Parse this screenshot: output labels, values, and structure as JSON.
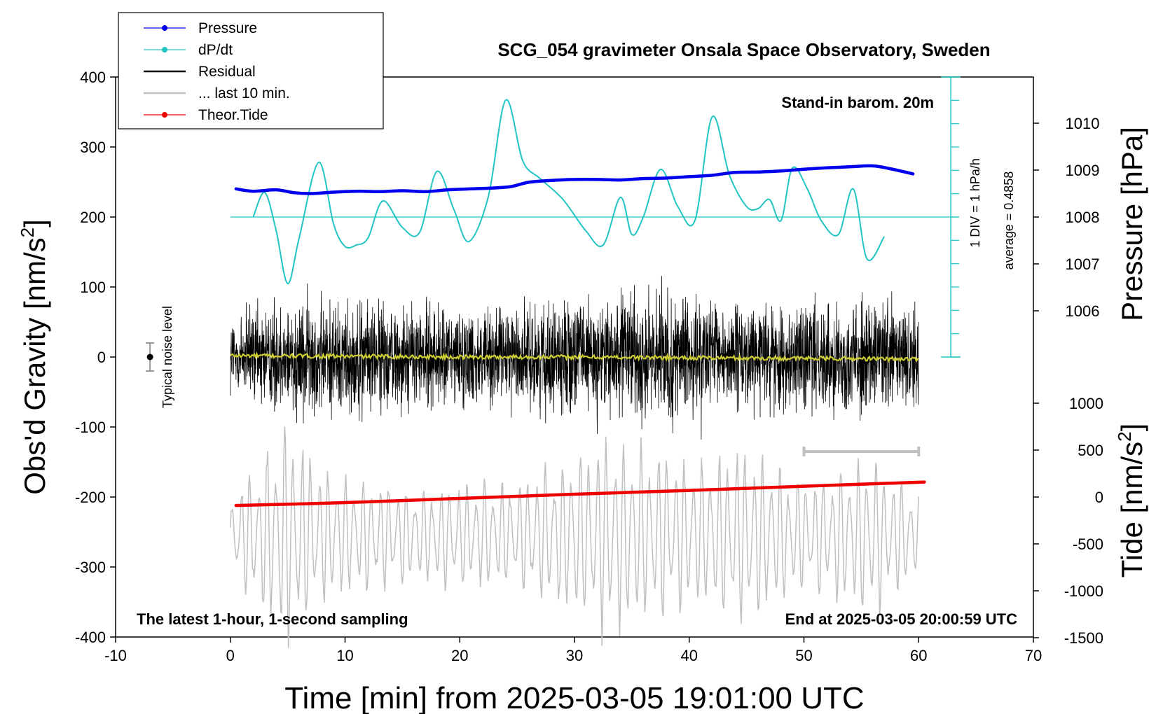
{
  "chart_data": {
    "type": "line",
    "title": "SCG_054 gravimeter Onsala Space Observatory, Sweden",
    "xlabel": "Time [min] from 2025-03-05 19:01:00 UTC",
    "ylabel": "Obs'd Gravity [nm/s",
    "ylabel_sup": "2",
    "ylabel_end": "]",
    "xlim": [
      -10,
      70
    ],
    "ylim": [
      -400,
      400
    ],
    "xticks": [
      -10,
      0,
      10,
      20,
      30,
      40,
      50,
      60,
      70
    ],
    "yticks": [
      400,
      300,
      200,
      100,
      0,
      -100,
      -200,
      -300,
      -400
    ],
    "pressure_axis": {
      "label": "Pressure [hPa]",
      "ticks": [
        1010,
        1009,
        1008,
        1007,
        1006
      ],
      "gravity_at_1008": 200,
      "gravity_per_hpa": 67
    },
    "tide_axis": {
      "label": "Tide [nm/s",
      "label_sup": "2",
      "label_end": "]",
      "ticks": [
        1000,
        500,
        0,
        -500,
        -1000,
        -1500
      ],
      "gravity_at_0": -200,
      "gravity_per_500": 67
    },
    "legend": [
      {
        "label": "Pressure",
        "color": "#0000ee",
        "style": "line-dot"
      },
      {
        "label": "dP/dt",
        "color": "#22c4c4",
        "style": "line-dot"
      },
      {
        "label": "Residual",
        "color": "#000000",
        "style": "line"
      },
      {
        "label": "... last 10 min.",
        "color": "#c0c0c0",
        "style": "line"
      },
      {
        "label": "Theor.Tide",
        "color": "#ee0000",
        "style": "line-dot"
      }
    ],
    "annotations": {
      "barometer": "Stand-in barom. 20m",
      "scale_div": "1 DIV = 1 hPa/h",
      "scale_avg": "average = 0.4858",
      "noise_label": "Typical noise level",
      "bottom_left": "The latest 1-hour, 1-second sampling",
      "bottom_right": "End at 2025-03-05 20:00:59 UTC"
    },
    "series": [
      {
        "name": "Pressure",
        "unit": "hPa",
        "color": "#0000ee",
        "x": [
          0.5,
          2,
          4,
          5.5,
          7,
          9,
          11,
          13,
          15,
          17,
          19,
          21,
          23,
          24.5,
          26,
          28,
          30,
          32,
          34,
          36,
          38,
          40,
          42,
          44,
          46,
          48,
          50,
          52,
          54,
          56,
          57.5,
          59.5
        ],
        "values": [
          1008.6,
          1008.55,
          1008.58,
          1008.52,
          1008.5,
          1008.53,
          1008.55,
          1008.54,
          1008.56,
          1008.54,
          1008.58,
          1008.6,
          1008.62,
          1008.65,
          1008.74,
          1008.78,
          1008.8,
          1008.8,
          1008.79,
          1008.82,
          1008.83,
          1008.86,
          1008.89,
          1008.95,
          1008.96,
          1008.98,
          1009.02,
          1009.05,
          1009.07,
          1009.09,
          1009.03,
          1008.92
        ]
      },
      {
        "name": "dP/dt",
        "unit": "gravity units (200 = 0 hPa/h)",
        "color": "#22c4c4",
        "x": [
          2,
          3,
          4,
          5,
          6,
          7.7,
          9,
          10,
          11,
          12,
          13.3,
          15,
          16.5,
          18,
          19.5,
          20.8,
          22.5,
          24,
          25.5,
          27,
          29,
          31,
          32.5,
          34,
          35,
          36,
          37.5,
          39,
          40.5,
          42,
          43.5,
          45,
          46,
          47,
          48,
          49,
          50.3,
          51.5,
          53,
          54.3,
          55.5,
          57
        ],
        "values": [
          200,
          235,
          180,
          105,
          170,
          278,
          190,
          158,
          160,
          170,
          223,
          185,
          178,
          265,
          210,
          165,
          230,
          367,
          280,
          255,
          225,
          180,
          160,
          228,
          175,
          200,
          268,
          215,
          195,
          343,
          260,
          215,
          212,
          225,
          195,
          270,
          240,
          195,
          175,
          240,
          140,
          172
        ]
      },
      {
        "name": "Theor.Tide",
        "unit": "nm/s2",
        "color": "#ee0000",
        "x": [
          0.5,
          10,
          20,
          30,
          40,
          50,
          60.5
        ],
        "values": [
          -90,
          -60,
          -15,
          30,
          70,
          115,
          160
        ]
      },
      {
        "name": "Residual",
        "unit": "nm/s2",
        "color": "#000000",
        "noise_seed": 12345,
        "x": [
          0,
          6,
          12,
          18,
          24,
          30,
          36,
          42,
          48,
          54,
          60
        ],
        "envelope": [
          90,
          120,
          110,
          100,
          95,
          110,
          125,
          105,
          100,
          115,
          105
        ]
      },
      {
        "name": "Residual smoothed",
        "unit": "nm/s2",
        "color": "#cccc33",
        "x": [
          0,
          10,
          20,
          30,
          40,
          50,
          60
        ],
        "values": [
          2,
          1,
          0,
          0,
          -1,
          -2,
          -3
        ]
      },
      {
        "name": "... last 10 min.",
        "unit": "nm/s2 (display scaled)",
        "color": "#c0c0c0",
        "noise_seed": 98765,
        "x": [
          0,
          5,
          8,
          15,
          25,
          33,
          40,
          45,
          50,
          56,
          60
        ],
        "envelope": [
          60,
          185,
          110,
          80,
          90,
          165,
          120,
          150,
          90,
          130,
          70
        ]
      }
    ],
    "noise_bar": {
      "x": -7,
      "center": 0,
      "half_range": 20
    },
    "range_bar": {
      "x_start": 50,
      "x_end": 60,
      "y": -135
    }
  }
}
